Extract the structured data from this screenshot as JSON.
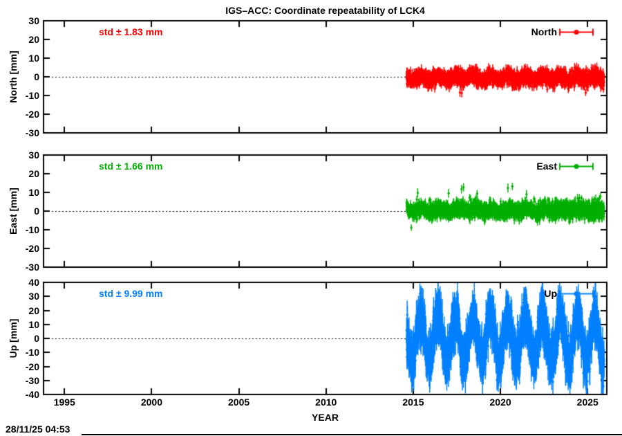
{
  "title": "IGS–ACC: Coordinate repeatability of LCK4",
  "footer": {
    "timestamp": "28/11/25 04:53"
  },
  "chart_data": {
    "type": "scatter",
    "title": "IGS–ACC: Coordinate repeatability of LCK4",
    "xlabel": "YEAR",
    "xlim": [
      1993.8,
      2026.1
    ],
    "xticks": [
      1995,
      2000,
      2005,
      2010,
      2015,
      2020,
      2025
    ],
    "data_time_span": [
      2014.62,
      2025.95
    ],
    "grid": "dotted-zero-line",
    "legend_position": "top-right-inside",
    "marker": "filled-circle-with-errorbar",
    "panels": [
      {
        "name": "North",
        "ylabel": "North [mm]",
        "legend_label": "North",
        "std_label": "std ± 1.83 mm",
        "std_mm": 1.83,
        "color": "#ff0000",
        "ylim": [
          -30,
          30
        ],
        "yticks": [
          30,
          20,
          10,
          0,
          -10,
          -20,
          -30
        ],
        "series_model": {
          "seed": 101,
          "mean_mm": -0.5,
          "noise_std_mm": 1.8,
          "annual_amplitude_mm": 1.0,
          "annual_peak_fraction": 0.45,
          "spread_growth": 0.15,
          "errorbar_half_mm": 1.4,
          "errorbar_jitter_mm": 1.2,
          "outlier_rate": 0.006,
          "outlier_mm": 5,
          "outlier_sign_bias": 0.1
        }
      },
      {
        "name": "East",
        "ylabel": "East [mm]",
        "legend_label": "East",
        "std_label": "std ± 1.66 mm",
        "std_mm": 1.66,
        "color": "#00b000",
        "ylim": [
          -30,
          30
        ],
        "yticks": [
          30,
          20,
          10,
          0,
          -10,
          -20,
          -30
        ],
        "series_model": {
          "seed": 202,
          "mean_mm": 0.5,
          "noise_std_mm": 1.7,
          "annual_amplitude_mm": 0.9,
          "annual_peak_fraction": 0.55,
          "spread_growth": 0.4,
          "errorbar_half_mm": 1.4,
          "errorbar_jitter_mm": 1.2,
          "outlier_rate": 0.012,
          "outlier_mm": 7,
          "outlier_sign_bias": -0.7
        }
      },
      {
        "name": "Up",
        "ylabel": "Up [mm]",
        "legend_label": "Up",
        "std_label": "std ± 9.99 mm",
        "std_mm": 9.99,
        "color": "#0080ff",
        "ylim": [
          -40,
          40
        ],
        "yticks": [
          40,
          30,
          20,
          10,
          0,
          -10,
          -20,
          -30,
          -40
        ],
        "series_model": {
          "seed": 303,
          "mean_mm": 0,
          "noise_std_mm": 6.5,
          "annual_amplitude_mm": 16,
          "annual_peak_fraction": 0.42,
          "spread_growth": 0.1,
          "errorbar_half_mm": 6,
          "errorbar_jitter_mm": 6,
          "outlier_rate": 0.02,
          "outlier_mm": 11,
          "outlier_sign_bias": 0.1
        }
      }
    ]
  }
}
